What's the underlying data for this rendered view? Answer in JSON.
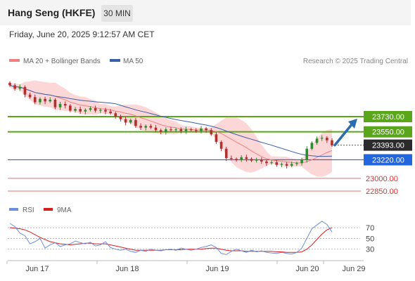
{
  "header": {
    "title": "Hang Seng (HKFE)",
    "timeframe": "30 MIN",
    "timestamp": "Friday, June 20, 2025 9:12:57 AM CET"
  },
  "legend": {
    "ma20": "MA 20 + Bollinger Bands",
    "ma50": "MA 50",
    "rsi": "RSI",
    "ma9": "9MA"
  },
  "credit": "Research © 2025 Trading Central",
  "colors": {
    "up_candle": "#2e8b2e",
    "down_candle": "#b03030",
    "ma20": "#f08080",
    "bollinger_fill": "#fbd0d0",
    "ma50": "#3a5fa8",
    "resistance": "#5aa61a",
    "support_primary": "#2266dd",
    "support_secondary": "#e57373",
    "current_price_bg": "#2b2b2b",
    "rsi_line": "#6a8fe0",
    "ma9_line": "#d62020",
    "arrow": "#2b6cb0"
  },
  "chart_data": [
    {
      "type": "candlestick",
      "title": "Hang Seng (HKFE)",
      "timeframe": "30 MIN",
      "x_labels": [
        "Jun 17",
        "Jun 18",
        "Jun 19",
        "Jun 20",
        "Jun 29"
      ],
      "y_range": [
        22760,
        24210
      ],
      "levels": [
        {
          "value": 23730.0,
          "label": "23730.00",
          "kind": "resistance"
        },
        {
          "value": 23550.0,
          "label": "23550.00",
          "kind": "resistance"
        },
        {
          "value": 23393.0,
          "label": "23393.00",
          "kind": "current"
        },
        {
          "value": 23220.0,
          "label": "23220.00",
          "kind": "support_primary"
        },
        {
          "value": 23000.0,
          "label": "23000.00",
          "kind": "support_secondary"
        },
        {
          "value": 22850.0,
          "label": "22850.00",
          "kind": "support_secondary"
        }
      ],
      "close_series": [
        24100,
        24060,
        24080,
        23990,
        23960,
        23900,
        23940,
        23910,
        23930,
        23840,
        23880,
        23860,
        23800,
        23820,
        23790,
        23810,
        23830,
        23800,
        23810,
        23790,
        23770,
        23730,
        23700,
        23660,
        23690,
        23620,
        23600,
        23620,
        23600,
        23570,
        23550,
        23580,
        23570,
        23580,
        23560,
        23580,
        23570,
        23560,
        23590,
        23570,
        23520,
        23430,
        23350,
        23240,
        23230,
        23220,
        23250,
        23230,
        23210,
        23220,
        23200,
        23180,
        23190,
        23160,
        23170,
        23150,
        23170,
        23180,
        23220,
        23350,
        23420,
        23470,
        23480,
        23450,
        23390
      ],
      "annotations": [
        {
          "type": "arrow",
          "from_value": 23393,
          "to_value": 23730,
          "direction": "up"
        }
      ],
      "legend": [
        "MA 20 + Bollinger Bands",
        "MA 50"
      ]
    },
    {
      "type": "line",
      "title": "RSI",
      "series": [
        {
          "name": "RSI",
          "values": [
            78,
            72,
            60,
            55,
            40,
            44,
            50,
            32,
            38,
            42,
            35,
            38,
            40,
            45,
            42,
            40,
            43,
            36,
            38,
            44,
            33,
            30,
            28,
            30,
            26,
            24,
            28,
            26,
            30,
            28,
            27,
            29,
            30,
            28,
            32,
            30,
            28,
            30,
            33,
            35,
            38,
            33,
            22,
            20,
            26,
            30,
            27,
            24,
            28,
            25,
            27,
            24,
            23,
            22,
            24,
            22,
            21,
            24,
            32,
            50,
            68,
            75,
            82,
            76,
            62
          ]
        },
        {
          "name": "9MA",
          "values": [
            70,
            69,
            68,
            66,
            62,
            57,
            52,
            48,
            44,
            42,
            40,
            39,
            38,
            39,
            40,
            41,
            41,
            40,
            40,
            40,
            38,
            36,
            34,
            32,
            30,
            28,
            28,
            28,
            28,
            28,
            28,
            29,
            29,
            29,
            29,
            30,
            30,
            30,
            30,
            31,
            32,
            32,
            30,
            28,
            27,
            27,
            27,
            26,
            26,
            26,
            26,
            26,
            26,
            25,
            25,
            24,
            24,
            24,
            25,
            30,
            38,
            48,
            58,
            66,
            70
          ]
        }
      ],
      "y_ticks": [
        70,
        50,
        30
      ],
      "ylim": [
        10,
        95
      ],
      "reference_lines": [
        70,
        50,
        30
      ]
    }
  ]
}
